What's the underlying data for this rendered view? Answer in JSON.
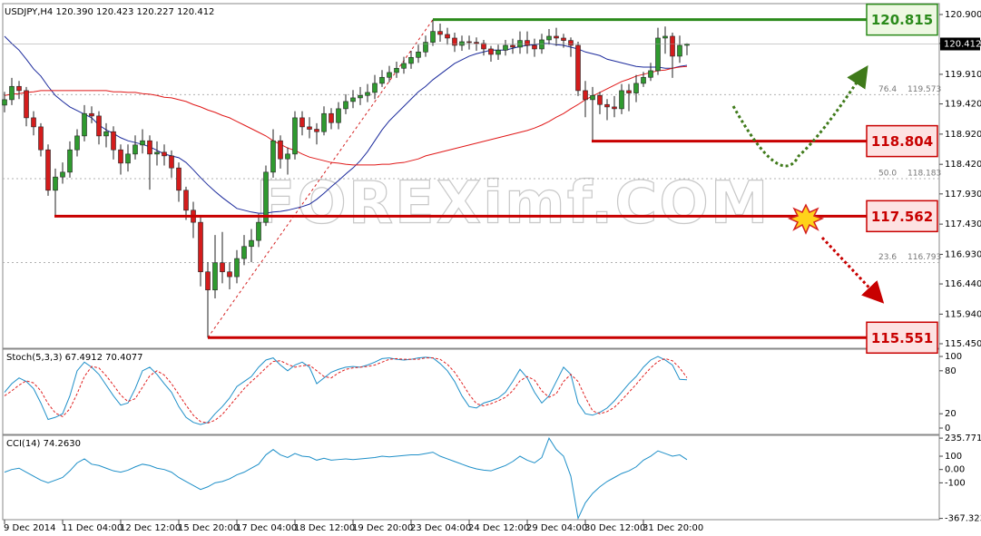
{
  "chart_data": [
    {
      "type": "candlestick",
      "title": "USDJPY,H4  120.390 120.423 120.227 120.412",
      "categories": [
        "9 Dec 2014",
        null,
        null,
        null,
        null,
        null,
        null,
        null,
        "11 Dec 04:00",
        null,
        null,
        null,
        null,
        null,
        null,
        null,
        "12 Dec 12:00",
        null,
        null,
        null,
        null,
        null,
        null,
        null,
        "15 Dec 20:00",
        null,
        null,
        null,
        null,
        null,
        null,
        null,
        "17 Dec 04:00",
        null,
        null,
        null,
        null,
        null,
        null,
        null,
        "18 Dec 12:00",
        null,
        null,
        null,
        null,
        null,
        null,
        null,
        "19 Dec 20:00",
        null,
        null,
        null,
        null,
        null,
        null,
        null,
        "23 Dec 04:00",
        null,
        null,
        null,
        null,
        null,
        null,
        null,
        "24 Dec 12:00",
        null,
        null,
        null,
        null,
        null,
        null,
        null,
        "29 Dec 04:00",
        null,
        null,
        null,
        null,
        null,
        null,
        null,
        "30 Dec 12:00",
        null,
        null,
        null,
        null,
        null,
        null,
        null,
        "31 Dec 20:00",
        null,
        null,
        null,
        null,
        null,
        null
      ],
      "open": [
        119.4,
        119.49,
        119.71,
        119.64,
        119.19,
        119.04,
        118.66,
        117.99,
        118.21,
        118.29,
        118.66,
        118.89,
        119.26,
        119.22,
        118.89,
        118.96,
        118.66,
        118.44,
        118.59,
        118.74,
        118.81,
        118.59,
        118.62,
        118.56,
        118.36,
        117.99,
        117.66,
        117.46,
        116.64,
        116.34,
        116.79,
        116.64,
        116.56,
        116.86,
        117.06,
        117.16,
        117.46,
        118.29,
        118.81,
        118.51,
        118.59,
        119.19,
        119.04,
        119.0,
        118.96,
        119.26,
        119.11,
        119.34,
        119.46,
        119.52,
        119.56,
        119.61,
        119.76,
        119.86,
        119.94,
        120.01,
        120.09,
        120.19,
        120.28,
        120.44,
        120.62,
        120.57,
        120.51,
        120.39,
        120.45,
        120.44,
        120.42,
        120.33,
        120.24,
        120.31,
        120.39,
        120.36,
        120.47,
        120.39,
        120.33,
        120.48,
        120.54,
        120.51,
        120.47,
        120.39,
        119.64,
        119.49,
        119.56,
        119.41,
        119.37,
        119.34,
        119.64,
        119.6,
        119.76,
        119.86,
        119.97,
        120.51,
        120.54,
        120.21,
        120.39
      ],
      "high": [
        119.62,
        119.85,
        119.8,
        119.7,
        119.3,
        119.1,
        118.75,
        118.35,
        118.45,
        118.8,
        119.0,
        119.4,
        119.38,
        119.3,
        119.1,
        119.05,
        118.75,
        118.75,
        118.9,
        119.0,
        118.9,
        118.8,
        118.75,
        118.65,
        118.45,
        118.05,
        117.8,
        117.55,
        116.8,
        117.25,
        117.3,
        116.8,
        117.0,
        117.25,
        117.35,
        117.6,
        118.4,
        119.0,
        118.9,
        118.7,
        119.3,
        119.3,
        119.2,
        119.1,
        119.38,
        119.35,
        119.45,
        119.58,
        119.65,
        119.7,
        119.75,
        119.9,
        119.98,
        120.05,
        120.12,
        120.2,
        120.3,
        120.4,
        120.55,
        120.815,
        120.75,
        120.68,
        120.6,
        120.55,
        120.55,
        120.52,
        120.48,
        120.38,
        120.4,
        120.48,
        120.5,
        120.62,
        120.62,
        120.5,
        120.58,
        120.66,
        120.68,
        120.58,
        120.52,
        120.45,
        119.8,
        119.7,
        119.62,
        119.5,
        119.55,
        119.75,
        119.75,
        119.9,
        119.95,
        120.1,
        120.68,
        120.7,
        120.6,
        120.55,
        120.423
      ],
      "low": [
        119.28,
        119.4,
        119.5,
        119.05,
        118.9,
        118.55,
        117.9,
        117.56,
        118.1,
        118.2,
        118.55,
        118.8,
        119.1,
        118.75,
        118.7,
        118.5,
        118.25,
        118.3,
        118.5,
        118.6,
        118.0,
        118.4,
        118.4,
        118.2,
        117.8,
        117.5,
        117.2,
        116.4,
        115.551,
        116.2,
        116.45,
        116.35,
        116.45,
        116.75,
        116.8,
        117.05,
        117.4,
        118.2,
        118.35,
        118.25,
        118.5,
        118.9,
        118.85,
        118.75,
        118.9,
        119.0,
        119.0,
        119.25,
        119.35,
        119.4,
        119.45,
        119.5,
        119.7,
        119.78,
        119.85,
        119.92,
        120.0,
        120.1,
        120.2,
        120.38,
        120.45,
        120.4,
        120.28,
        120.3,
        120.32,
        120.3,
        120.22,
        120.12,
        120.15,
        120.22,
        120.25,
        120.25,
        120.25,
        120.2,
        120.25,
        120.4,
        120.38,
        120.35,
        120.2,
        119.55,
        119.2,
        118.804,
        119.25,
        119.15,
        119.2,
        119.25,
        119.3,
        119.45,
        119.7,
        119.8,
        119.9,
        120.25,
        119.85,
        120.1,
        120.227
      ],
      "close": [
        119.49,
        119.71,
        119.64,
        119.19,
        119.04,
        118.66,
        117.99,
        118.21,
        118.29,
        118.66,
        118.89,
        119.26,
        119.22,
        118.89,
        118.96,
        118.66,
        118.44,
        118.59,
        118.74,
        118.81,
        118.59,
        118.62,
        118.56,
        118.36,
        117.99,
        117.66,
        117.46,
        116.64,
        116.34,
        116.79,
        116.64,
        116.56,
        116.86,
        117.06,
        117.16,
        117.46,
        118.29,
        118.81,
        118.51,
        118.59,
        119.19,
        119.04,
        119.0,
        118.96,
        119.26,
        119.11,
        119.34,
        119.46,
        119.52,
        119.56,
        119.61,
        119.76,
        119.86,
        119.94,
        120.01,
        120.09,
        120.19,
        120.28,
        120.44,
        120.62,
        120.57,
        120.51,
        120.39,
        120.45,
        120.44,
        120.42,
        120.33,
        120.24,
        120.31,
        120.39,
        120.36,
        120.47,
        120.39,
        120.33,
        120.48,
        120.54,
        120.51,
        120.47,
        120.39,
        119.64,
        119.49,
        119.56,
        119.41,
        119.37,
        119.34,
        119.64,
        119.6,
        119.76,
        119.86,
        119.97,
        120.51,
        120.54,
        120.21,
        120.39,
        120.412
      ],
      "up_color": "#2f9a2f",
      "down_color": "#d41c1c",
      "series": [
        {
          "color": "#1b2a9c",
          "values": [
            120.54,
            120.42,
            120.31,
            120.16,
            120.0,
            119.88,
            119.71,
            119.56,
            119.46,
            119.37,
            119.31,
            119.25,
            119.19,
            119.07,
            118.99,
            118.93,
            118.86,
            118.81,
            118.78,
            118.75,
            118.71,
            118.65,
            118.59,
            118.56,
            118.53,
            118.45,
            118.33,
            118.2,
            118.08,
            117.97,
            117.87,
            117.78,
            117.69,
            117.66,
            117.63,
            117.61,
            117.61,
            117.63,
            117.64,
            117.66,
            117.69,
            117.72,
            117.76,
            117.84,
            117.94,
            118.05,
            118.15,
            118.26,
            118.36,
            118.48,
            118.63,
            118.81,
            118.99,
            119.14,
            119.26,
            119.38,
            119.5,
            119.62,
            119.71,
            119.82,
            119.91,
            120.0,
            120.09,
            120.15,
            120.21,
            120.25,
            120.28,
            120.31,
            120.31,
            120.31,
            120.34,
            120.37,
            120.39,
            120.4,
            120.42,
            120.42,
            120.4,
            120.39,
            120.36,
            120.33,
            120.28,
            120.25,
            120.22,
            120.16,
            120.13,
            120.1,
            120.07,
            120.04,
            120.03,
            120.03,
            120.03,
            120.01,
            120.01,
            120.04,
            120.06
          ]
        },
        {
          "color": "#e01818",
          "values": [
            119.56,
            119.58,
            119.59,
            119.61,
            119.62,
            119.64,
            119.64,
            119.64,
            119.64,
            119.64,
            119.64,
            119.64,
            119.64,
            119.64,
            119.64,
            119.62,
            119.62,
            119.61,
            119.61,
            119.59,
            119.58,
            119.56,
            119.53,
            119.52,
            119.49,
            119.46,
            119.41,
            119.37,
            119.32,
            119.28,
            119.23,
            119.19,
            119.13,
            119.07,
            119.01,
            118.95,
            118.89,
            118.81,
            118.75,
            118.69,
            118.65,
            118.59,
            118.54,
            118.51,
            118.48,
            118.45,
            118.44,
            118.42,
            118.41,
            118.41,
            118.41,
            118.41,
            118.42,
            118.42,
            118.44,
            118.45,
            118.48,
            118.51,
            118.56,
            118.59,
            118.62,
            118.65,
            118.68,
            118.71,
            118.74,
            118.77,
            118.8,
            118.83,
            118.86,
            118.89,
            118.92,
            118.95,
            118.98,
            119.02,
            119.07,
            119.13,
            119.2,
            119.26,
            119.34,
            119.41,
            119.49,
            119.55,
            119.61,
            119.67,
            119.73,
            119.79,
            119.83,
            119.88,
            119.91,
            119.94,
            119.97,
            119.98,
            120.01,
            120.03,
            120.04
          ]
        }
      ],
      "ylim": [
        115.39,
        121.065
      ],
      "yticks": [
        {
          "value": 120.9,
          "label": "120.900"
        },
        {
          "value": 120.42,
          "label": "120.420"
        },
        {
          "value": 119.91,
          "label": "119.910"
        },
        {
          "value": 119.42,
          "label": "119.420"
        },
        {
          "value": 118.92,
          "label": "118.920"
        },
        {
          "value": 118.42,
          "label": "118.420"
        },
        {
          "value": 117.93,
          "label": "117.930"
        },
        {
          "value": 117.43,
          "label": "117.430"
        },
        {
          "value": 116.93,
          "label": "116.930"
        },
        {
          "value": 116.44,
          "label": "116.440"
        },
        {
          "value": 115.94,
          "label": "115.940"
        },
        {
          "value": 115.45,
          "label": "115.450"
        }
      ],
      "levels": [
        {
          "value": 120.815,
          "color": "#2a8a1a",
          "fill": "#eef8e2"
        },
        {
          "value": 118.804,
          "color": "#c80000",
          "fill": "#fde2e2"
        },
        {
          "value": 117.562,
          "color": "#c80000",
          "fill": "#fde2e2"
        },
        {
          "value": 115.551,
          "color": "#c80000",
          "fill": "#fde2e2"
        }
      ],
      "fibonacci": [
        {
          "ratio": "76.4",
          "value": 119.573
        },
        {
          "ratio": "50.0",
          "value": 118.183
        },
        {
          "ratio": "23.6",
          "value": 116.793
        }
      ],
      "watermark": "FOREXimf.COM"
    },
    {
      "type": "line",
      "title": "Stoch(5,3,3) 67.4912 70.4077",
      "series": [
        {
          "color": "#1e8fc8",
          "values": [
            50,
            62,
            70,
            65,
            55,
            35,
            12,
            15,
            20,
            45,
            80,
            92,
            85,
            75,
            60,
            45,
            32,
            35,
            55,
            80,
            85,
            75,
            62,
            50,
            30,
            15,
            8,
            5,
            8,
            20,
            30,
            42,
            58,
            65,
            72,
            85,
            95,
            98,
            88,
            80,
            88,
            92,
            85,
            62,
            70,
            78,
            82,
            85,
            86,
            85,
            88,
            92,
            97,
            98,
            96,
            95,
            96,
            98,
            99,
            98,
            90,
            80,
            65,
            45,
            30,
            28,
            35,
            38,
            42,
            50,
            65,
            82,
            70,
            50,
            35,
            45,
            65,
            85,
            75,
            35,
            20,
            18,
            22,
            28,
            38,
            50,
            62,
            72,
            85,
            95,
            100,
            95,
            88,
            68,
            67.4912
          ]
        },
        {
          "color": "#e02020",
          "dashed": true,
          "values": [
            45,
            52,
            60,
            66,
            63,
            52,
            34,
            21,
            16,
            27,
            48,
            72,
            86,
            84,
            73,
            60,
            46,
            37,
            41,
            57,
            73,
            80,
            74,
            62,
            47,
            32,
            18,
            9,
            7,
            11,
            19,
            31,
            43,
            55,
            65,
            74,
            84,
            93,
            94,
            89,
            85,
            87,
            88,
            80,
            72,
            70,
            77,
            82,
            84,
            85,
            86,
            88,
            92,
            96,
            97,
            96,
            96,
            96,
            98,
            98,
            96,
            89,
            78,
            63,
            47,
            34,
            31,
            34,
            38,
            43,
            52,
            66,
            72,
            67,
            52,
            43,
            48,
            65,
            75,
            65,
            43,
            24,
            20,
            23,
            29,
            39,
            50,
            61,
            73,
            84,
            93,
            97,
            94,
            84,
            70.4077
          ]
        }
      ],
      "ylim": [
        -7.6,
        108.9
      ],
      "yticks": [
        100,
        80,
        20,
        0
      ]
    },
    {
      "type": "line",
      "title": "CCI(14) 74.2630",
      "series": [
        {
          "color": "#1e8fc8",
          "values": [
            -20,
            0,
            10,
            -20,
            -50,
            -80,
            -100,
            -80,
            -60,
            -10,
            50,
            80,
            40,
            30,
            10,
            -10,
            -20,
            -5,
            20,
            40,
            30,
            10,
            0,
            -20,
            -60,
            -90,
            -120,
            -150,
            -130,
            -100,
            -90,
            -70,
            -40,
            -20,
            10,
            40,
            110,
            150,
            110,
            90,
            120,
            100,
            95,
            70,
            85,
            70,
            75,
            80,
            75,
            80,
            85,
            90,
            100,
            95,
            100,
            105,
            110,
            110,
            120,
            130,
            100,
            80,
            60,
            40,
            20,
            5,
            -5,
            -10,
            10,
            30,
            60,
            100,
            70,
            50,
            90,
            235.7714,
            150,
            100,
            -50,
            -367.3234,
            -250,
            -180,
            -130,
            -90,
            -60,
            -30,
            -10,
            20,
            70,
            100,
            140,
            120,
            100,
            110,
            74.263
          ]
        }
      ],
      "ylim": [
        -370,
        250
      ],
      "yticks": [
        235.7714,
        100,
        {
          "value": 0,
          "label": "0.00"
        },
        -100,
        -367.3234
      ]
    }
  ]
}
